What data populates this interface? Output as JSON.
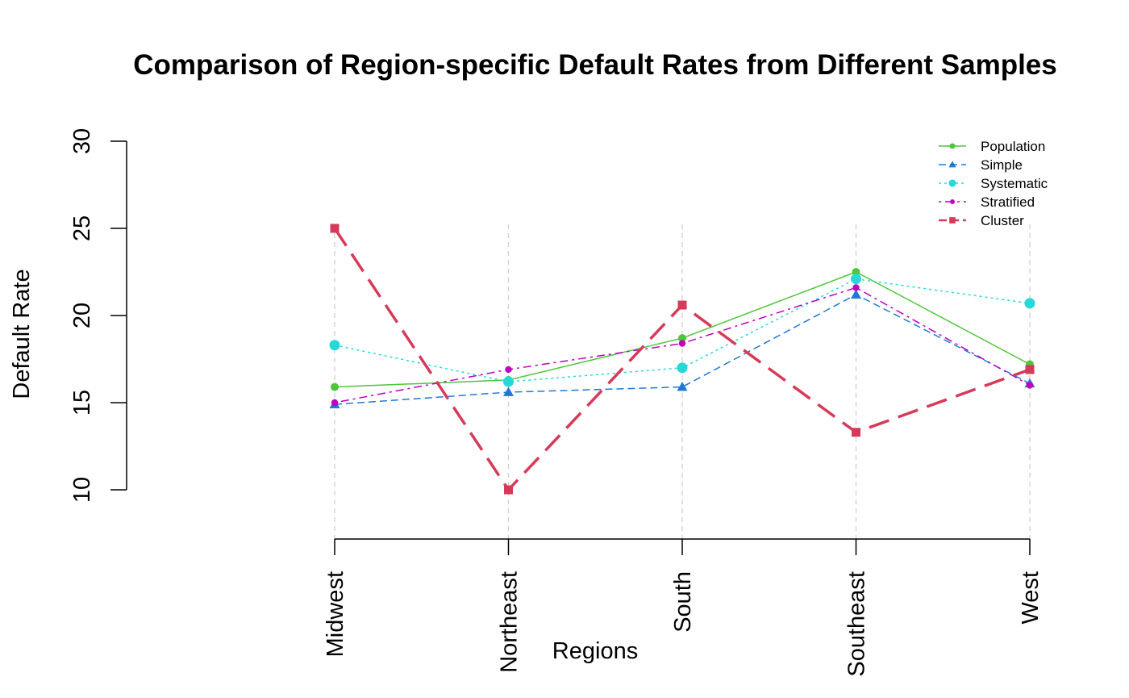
{
  "chart_data": {
    "type": "line",
    "title": "Comparison of Region-specific Default Rates from Different Samples",
    "xlabel": "Regions",
    "ylabel": "Default Rate",
    "categories": [
      "Midwest",
      "Northeast",
      "South",
      "Southeast",
      "West"
    ],
    "ylim": [
      10,
      30
    ],
    "yticks": [
      "10",
      "15",
      "20",
      "25",
      "30"
    ],
    "legend_position": "top-right",
    "vertical_guides": true,
    "series": [
      {
        "name": "Population",
        "values": [
          15.9,
          16.3,
          18.7,
          22.5,
          17.2
        ],
        "color": "#4fc63a",
        "line": "solid",
        "marker": "circle",
        "width": 1.5
      },
      {
        "name": "Simple",
        "values": [
          14.9,
          15.6,
          15.9,
          21.2,
          16.1
        ],
        "color": "#1f78d8",
        "line": "dashed",
        "marker": "triangle",
        "width": 1.5
      },
      {
        "name": "Systematic",
        "values": [
          18.3,
          16.2,
          17.0,
          22.1,
          20.7
        ],
        "color": "#28d8d8",
        "line": "dotted",
        "marker": "circle-large",
        "width": 1.5
      },
      {
        "name": "Stratified",
        "values": [
          15.0,
          16.9,
          18.4,
          21.6,
          16.0
        ],
        "color": "#c000c0",
        "line": "dotdash",
        "marker": "circle-small",
        "width": 1.5
      },
      {
        "name": "Cluster",
        "values": [
          25.0,
          10.0,
          20.6,
          13.3,
          16.9
        ],
        "color": "#d63a5a",
        "line": "longdash",
        "marker": "square",
        "width": 3.5
      }
    ]
  }
}
